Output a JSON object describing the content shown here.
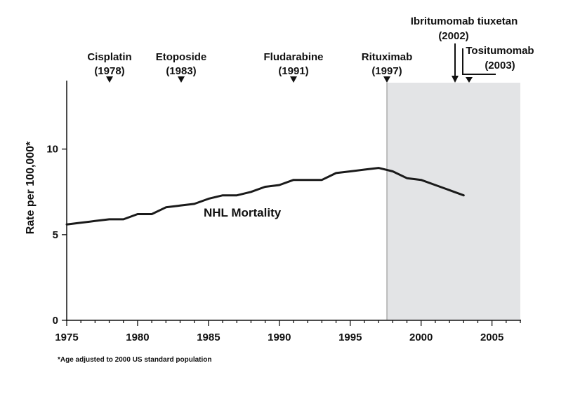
{
  "chart_data": {
    "type": "line",
    "ylabel": "Rate per 100,000*",
    "xlim": [
      1975,
      2007
    ],
    "ylim": [
      0,
      14
    ],
    "x_ticks": [
      1975,
      1980,
      1985,
      1990,
      1995,
      2000,
      2005
    ],
    "y_ticks": [
      0,
      5,
      10
    ],
    "series": [
      {
        "name": "NHL Mortality",
        "x": [
          1975,
          1976,
          1977,
          1978,
          1979,
          1980,
          1981,
          1982,
          1983,
          1984,
          1985,
          1986,
          1987,
          1988,
          1989,
          1990,
          1991,
          1992,
          1993,
          1994,
          1995,
          1996,
          1997,
          1998,
          1999,
          2000,
          2001,
          2002,
          2003
        ],
        "y": [
          5.6,
          5.7,
          5.8,
          5.9,
          5.9,
          6.2,
          6.2,
          6.6,
          6.7,
          6.8,
          7.1,
          7.3,
          7.3,
          7.5,
          7.8,
          7.9,
          8.2,
          8.2,
          8.2,
          8.6,
          8.7,
          8.8,
          8.9,
          8.7,
          8.3,
          8.2,
          7.9,
          7.6,
          7.3
        ]
      }
    ],
    "shaded_region": {
      "x_start": 1997.5,
      "x_end": 2007,
      "color": "#e3e4e6"
    },
    "annotations": [
      {
        "name": "Cisplatin",
        "year": "(1978)",
        "x": 1978
      },
      {
        "name": "Etoposide",
        "year": "(1983)",
        "x": 1983
      },
      {
        "name": "Fludarabine",
        "year": "(1991)",
        "x": 1991
      },
      {
        "name": "Rituximab",
        "year": "(1997)",
        "x": 1997.5
      },
      {
        "name": "Ibritumomab tiuxetan",
        "year": "(2002)",
        "x": 2002.5
      },
      {
        "name": "Tositumomab",
        "year": "(2003)",
        "x": 2003.5
      }
    ],
    "footnote": "*Age adjusted to 2000 US standard population"
  }
}
